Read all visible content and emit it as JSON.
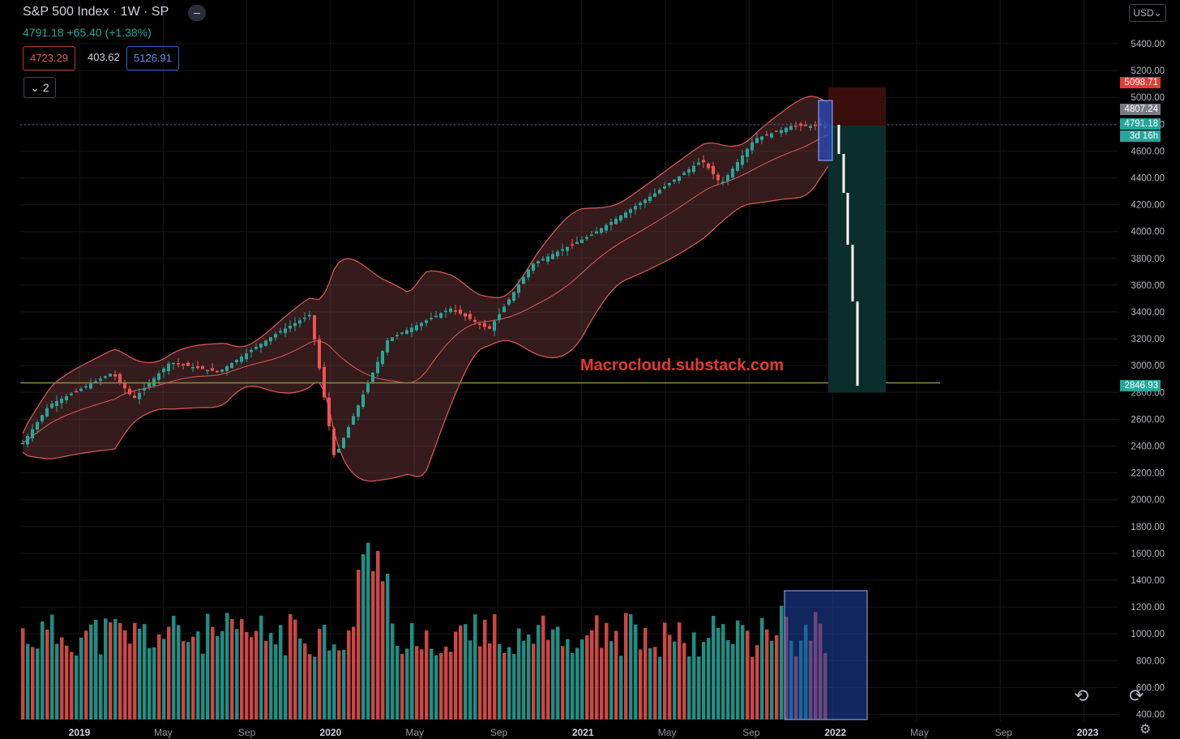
{
  "header": {
    "title": "S&P 500 Index · 1W · SP",
    "collapse_icon": "minus-icon",
    "quote": "4791.18 +65.40 (+1.38%)"
  },
  "indicator": {
    "lower": "4723.29",
    "basis": "403.62",
    "upper": "5126.91",
    "toggle_count": "2",
    "toggle_icon": "chevron-down-icon"
  },
  "currency": "USD",
  "watermark": "Macrocloud.substack.com",
  "price_axis": {
    "ticks": [
      "5400.00",
      "5200.00",
      "5000.00",
      "4800.00",
      "4600.00",
      "4400.00",
      "4200.00",
      "4000.00",
      "3800.00",
      "3600.00",
      "3400.00",
      "3200.00",
      "3000.00",
      "2800.00",
      "2600.00",
      "2400.00",
      "2200.00",
      "2000.00",
      "1800.00",
      "1600.00",
      "1400.00",
      "1200.00",
      "1000.00",
      "800.00",
      "600.00",
      "400.00"
    ],
    "tag_stop": "5098.71",
    "tag_level": "4807.24",
    "tag_last": "4791.18",
    "tag_countdown": "3d 16h",
    "tag_target": "2846.93"
  },
  "time_axis": [
    "2019",
    "May",
    "Sep",
    "2020",
    "May",
    "Sep",
    "2021",
    "May",
    "Sep",
    "2022",
    "May",
    "Sep",
    "2023"
  ],
  "colors": {
    "up": "#26a69a",
    "down": "#ef5350",
    "band": "#e05b5b",
    "target_zone": "#0c2e2b",
    "stop_zone": "#3a0d0d",
    "highlight": "#1e3a8a"
  },
  "icons": {
    "undo": "undo-icon",
    "redo": "redo-icon",
    "settings": "gear-icon"
  },
  "chart_data": {
    "type": "candlestick",
    "price_range": [
      2200,
      5400
    ],
    "position_tool": {
      "entry": 4807.24,
      "stop": 5098.71,
      "target": 2846.93
    },
    "horizontal_level": 2900,
    "weekly_close_approx": [
      {
        "date": "2018-12-24",
        "close": 2416
      },
      {
        "date": "2019-02-01",
        "close": 2705
      },
      {
        "date": "2019-05-03",
        "close": 2945
      },
      {
        "date": "2019-06-03",
        "close": 2750
      },
      {
        "date": "2019-07-26",
        "close": 3025
      },
      {
        "date": "2019-09-06",
        "close": 2978
      },
      {
        "date": "2019-10-04",
        "close": 2952
      },
      {
        "date": "2019-12-27",
        "close": 3240
      },
      {
        "date": "2020-02-14",
        "close": 3380
      },
      {
        "date": "2020-03-20",
        "close": 2304
      },
      {
        "date": "2020-06-05",
        "close": 3193
      },
      {
        "date": "2020-09-04",
        "close": 3426
      },
      {
        "date": "2020-10-30",
        "close": 3270
      },
      {
        "date": "2020-12-31",
        "close": 3756
      },
      {
        "date": "2021-03-26",
        "close": 3974
      },
      {
        "date": "2021-06-25",
        "close": 4280
      },
      {
        "date": "2021-09-03",
        "close": 4535
      },
      {
        "date": "2021-10-01",
        "close": 4357
      },
      {
        "date": "2021-11-19",
        "close": 4697
      },
      {
        "date": "2021-12-31",
        "close": 4766
      },
      {
        "date": "2022-01-07",
        "close": 4791.18
      }
    ]
  }
}
